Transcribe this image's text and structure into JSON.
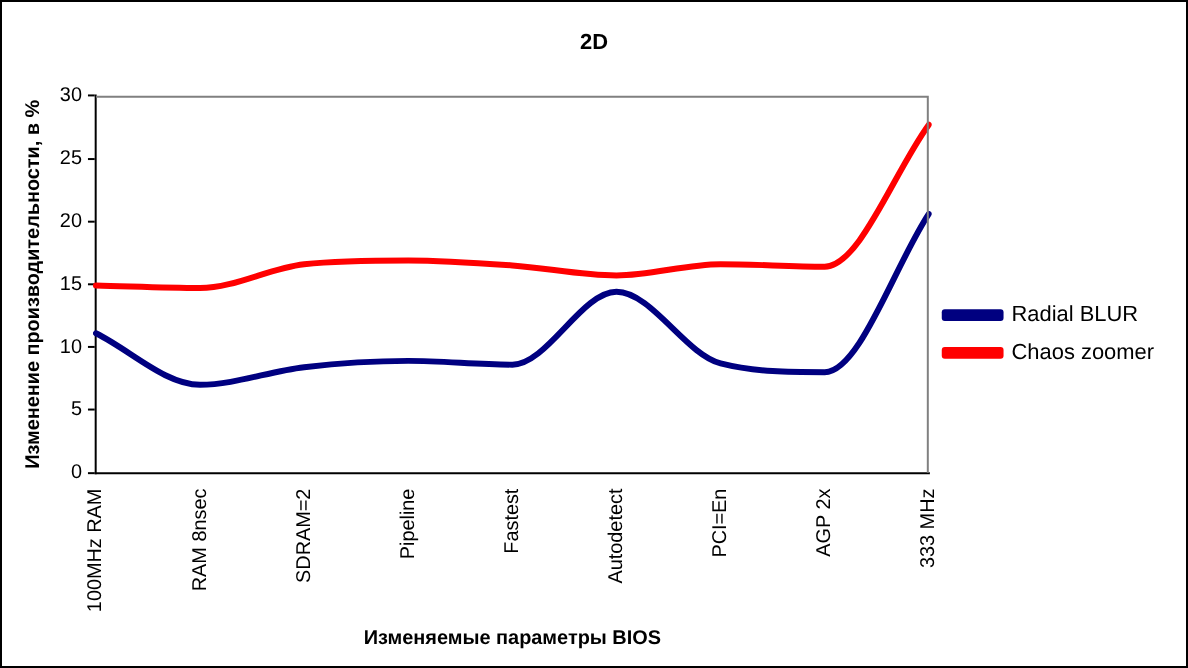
{
  "chart_data": {
    "type": "line",
    "title": "2D",
    "xlabel": "Изменяемые параметры BIOS",
    "ylabel": "Изменение производительности, в %",
    "categories": [
      "100MHz RAM",
      "RAM 8nsec",
      "SDRAM=2",
      "Pipeline",
      "Fastest",
      "Autodetect",
      "PCI=En",
      "AGP 2x",
      "333 MHz"
    ],
    "series": [
      {
        "name": "Radial BLUR",
        "color": "#000080",
        "values": [
          11.1,
          7.0,
          8.4,
          8.9,
          8.6,
          14.4,
          8.7,
          8.0,
          20.6
        ]
      },
      {
        "name": "Chaos zoomer",
        "color": "#ff0000",
        "values": [
          14.9,
          14.7,
          16.6,
          16.9,
          16.5,
          15.7,
          16.6,
          16.4,
          27.7
        ]
      }
    ],
    "ylim": [
      0,
      30
    ],
    "yticks": [
      0,
      5,
      10,
      15,
      20,
      25,
      30
    ],
    "grid": false,
    "legend": "right",
    "marker": "none",
    "line_style": "solid"
  }
}
